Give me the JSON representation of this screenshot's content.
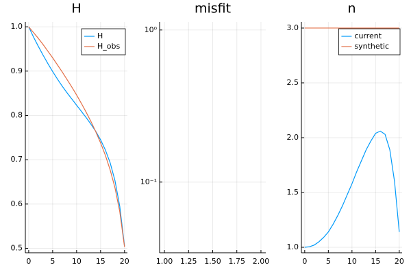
{
  "chart_data": [
    {
      "type": "line",
      "title": "H",
      "x": [
        0,
        1,
        2,
        3,
        4,
        5,
        6,
        7,
        8,
        9,
        10,
        11,
        12,
        13,
        14,
        15,
        16,
        17,
        18,
        19,
        20
      ],
      "series": [
        {
          "name": "H",
          "color": "#009afa",
          "values": [
            1.0,
            0.977,
            0.956,
            0.936,
            0.917,
            0.899,
            0.882,
            0.866,
            0.851,
            0.837,
            0.823,
            0.809,
            0.795,
            0.78,
            0.764,
            0.745,
            0.722,
            0.693,
            0.653,
            0.595,
            0.505
          ]
        },
        {
          "name": "H_obs",
          "color": "#e36f47",
          "values": [
            1.0,
            0.987,
            0.974,
            0.96,
            0.945,
            0.93,
            0.914,
            0.898,
            0.881,
            0.864,
            0.846,
            0.827,
            0.807,
            0.786,
            0.763,
            0.738,
            0.71,
            0.677,
            0.637,
            0.583,
            0.503
          ]
        }
      ],
      "xlim": [
        -0.7,
        20.6
      ],
      "ylim": [
        0.49,
        1.011
      ],
      "xticks": [
        0,
        5,
        10,
        15,
        20
      ],
      "yticks": [
        {
          "value": 0.5,
          "label": "0.5"
        },
        0.6,
        0.7,
        0.8,
        0.9,
        {
          "value": 1,
          "label": "1.0"
        }
      ],
      "grid": true,
      "legend": "top-right"
    },
    {
      "type": "line",
      "title": "misfit",
      "yscale": "log",
      "xlim": [
        0.95,
        2.05
      ],
      "ylim": [
        0.0343,
        1.13
      ],
      "xticks": [
        {
          "value": 1,
          "label": "1.00"
        },
        {
          "value": 1.25,
          "label": "1.25"
        },
        {
          "value": 1.5,
          "label": "1.50"
        },
        {
          "value": 1.75,
          "label": "1.75"
        },
        {
          "value": 2,
          "label": "2.00"
        }
      ],
      "yticks": [
        {
          "value": 0.1,
          "label": "10⁻¹"
        },
        {
          "value": 1,
          "label": "10⁰"
        }
      ],
      "grid": true
    },
    {
      "type": "line",
      "title": "n",
      "x": [
        0,
        1,
        2,
        3,
        4,
        5,
        6,
        7,
        8,
        9,
        10,
        11,
        12,
        13,
        14,
        15,
        16,
        17,
        18,
        19,
        20
      ],
      "series": [
        {
          "name": "current",
          "color": "#009afa",
          "values": [
            1.0,
            1.005,
            1.02,
            1.05,
            1.09,
            1.14,
            1.21,
            1.29,
            1.38,
            1.48,
            1.58,
            1.69,
            1.79,
            1.89,
            1.97,
            2.04,
            2.06,
            2.03,
            1.89,
            1.6,
            1.14
          ]
        },
        {
          "name": "synthetic",
          "color": "#e36f47",
          "values": [
            3,
            3,
            3,
            3,
            3,
            3,
            3,
            3,
            3,
            3,
            3,
            3,
            3,
            3,
            3,
            3,
            3,
            3,
            3,
            3,
            3
          ]
        }
      ],
      "xlim": [
        -0.7,
        20.6
      ],
      "ylim": [
        0.95,
        3.056
      ],
      "xticks": [
        0,
        5,
        10,
        15,
        20
      ],
      "yticks": [
        {
          "value": 1,
          "label": "1.0"
        },
        1.5,
        {
          "value": 2,
          "label": "2.0"
        },
        2.5,
        {
          "value": 3,
          "label": "3.0"
        }
      ],
      "grid": true,
      "legend": "top-right"
    }
  ]
}
